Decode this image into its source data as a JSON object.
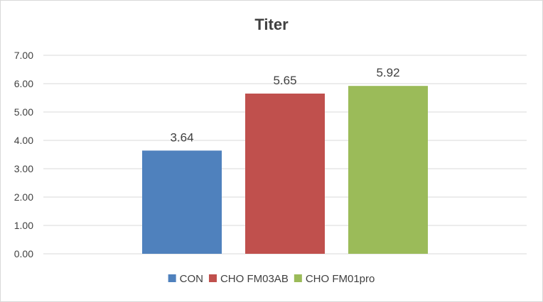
{
  "chart_data": {
    "type": "bar",
    "title": "Titer",
    "xlabel": "",
    "ylabel": "",
    "ylim": [
      0,
      7
    ],
    "yticks": [
      "0.00",
      "1.00",
      "2.00",
      "3.00",
      "4.00",
      "5.00",
      "6.00",
      "7.00"
    ],
    "grid": true,
    "legend_position": "bottom",
    "series": [
      {
        "name": "CON",
        "value": 3.64,
        "label": "3.64",
        "color": "#4f81bd"
      },
      {
        "name": "CHO FM03AB",
        "value": 5.65,
        "label": "5.65",
        "color": "#c0504d"
      },
      {
        "name": "CHO FM01pro",
        "value": 5.92,
        "label": "5.92",
        "color": "#9bbb59"
      }
    ]
  }
}
